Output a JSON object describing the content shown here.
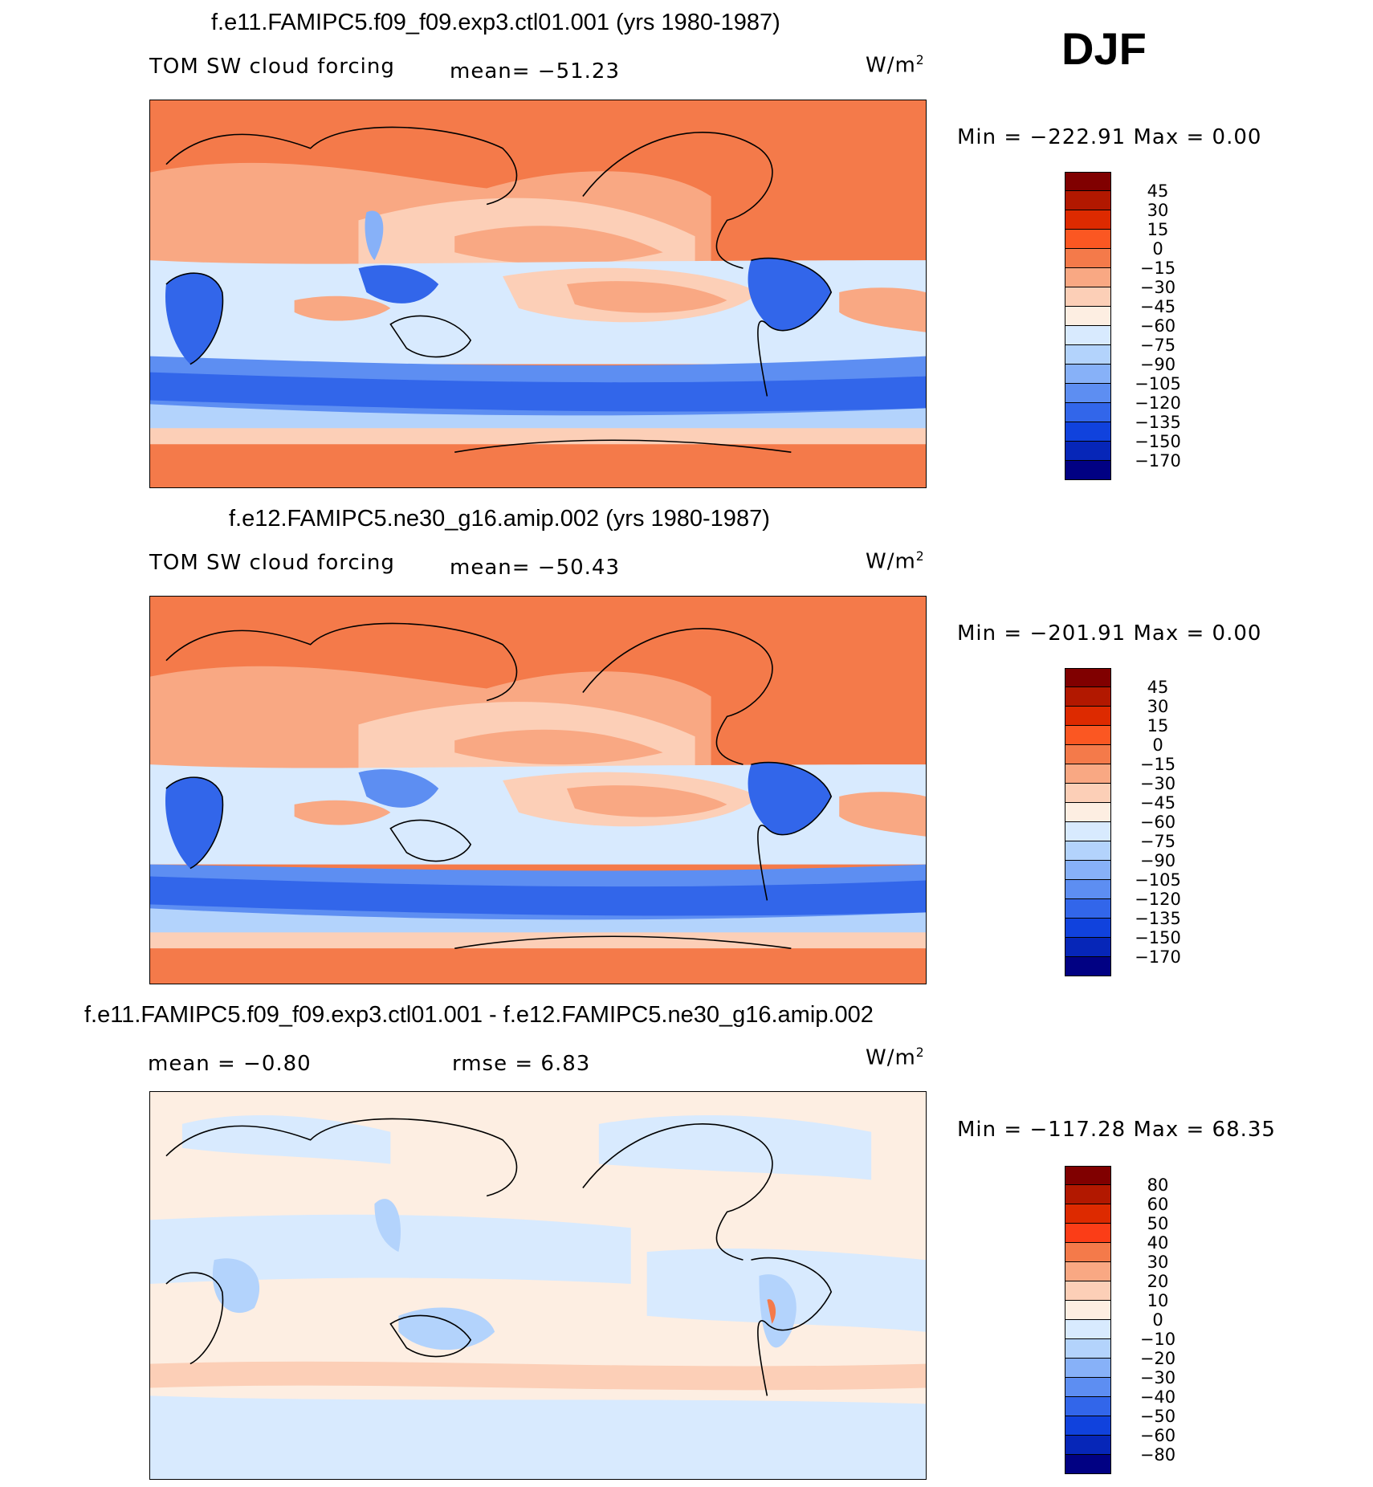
{
  "season": "DJF",
  "panels": [
    {
      "title": "f.e11.FAMIPC5.f09_f09.exp3.ctl01.001 (yrs 1980-1987)",
      "variable": "TOM SW cloud forcing",
      "stat1": "mean=  −51.23",
      "units": "W/m",
      "units_exp": "2",
      "minmax": "Min  =  −222.91  Max  =     0.00",
      "cbar_colors": [
        "#800000",
        "#b21800",
        "#dd2a00",
        "#fb5722",
        "#f47a4a",
        "#f9a883",
        "#fccfb7",
        "#fdeee2",
        "#d8eafe",
        "#b3d3fc",
        "#87b1f8",
        "#5d8ef2",
        "#3266ea",
        "#1042dd",
        "#0626b8",
        "#010183"
      ],
      "cbar_ticks": [
        "45",
        "30",
        "15",
        "0",
        "−15",
        "−30",
        "−45",
        "−60",
        "−75",
        "−90",
        "−105",
        "−120",
        "−135",
        "−150",
        "−170"
      ]
    },
    {
      "title": "f.e12.FAMIPC5.ne30_g16.amip.002 (yrs 1980-1987)",
      "variable": "TOM SW cloud forcing",
      "stat1": "mean=  −50.43",
      "units": "W/m",
      "units_exp": "2",
      "minmax": "Min  =  −201.91  Max  =     0.00",
      "cbar_colors": [
        "#800000",
        "#b21800",
        "#dd2a00",
        "#fb5722",
        "#f47a4a",
        "#f9a883",
        "#fccfb7",
        "#fdeee2",
        "#d8eafe",
        "#b3d3fc",
        "#87b1f8",
        "#5d8ef2",
        "#3266ea",
        "#1042dd",
        "#0626b8",
        "#010183"
      ],
      "cbar_ticks": [
        "45",
        "30",
        "15",
        "0",
        "−15",
        "−30",
        "−45",
        "−60",
        "−75",
        "−90",
        "−105",
        "−120",
        "−135",
        "−150",
        "−170"
      ]
    },
    {
      "title": "f.e11.FAMIPC5.f09_f09.exp3.ctl01.001 - f.e12.FAMIPC5.ne30_g16.amip.002",
      "stat1": "mean  =    −0.80",
      "stat2": "rmse  =     6.83",
      "units": "W/m",
      "units_exp": "2",
      "minmax": "Min  =  −117.28  Max  =    68.35",
      "cbar_colors": [
        "#800000",
        "#b21800",
        "#dd2a00",
        "#fb3d17",
        "#f47a4a",
        "#f9a883",
        "#fccfb7",
        "#fdeee2",
        "#d8eafe",
        "#b3d3fc",
        "#87b1f8",
        "#5d8ef2",
        "#3266ea",
        "#1042dd",
        "#0626b8",
        "#010183"
      ],
      "cbar_ticks": [
        "80",
        "60",
        "50",
        "40",
        "30",
        "20",
        "10",
        "0",
        "−10",
        "−20",
        "−30",
        "−40",
        "−50",
        "−60",
        "−80"
      ]
    }
  ]
}
